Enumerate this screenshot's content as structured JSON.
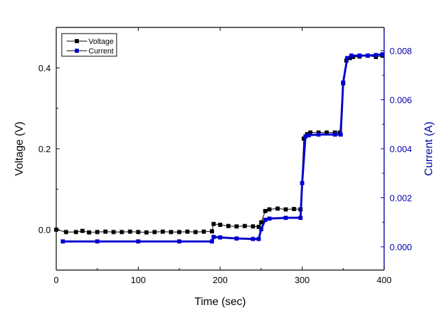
{
  "chart_data": {
    "type": "line",
    "title": "",
    "xlabel": "Time (sec)",
    "ylabel_left": "Voltage (V)",
    "ylabel_right": "Current (A)",
    "xlim": [
      0,
      400
    ],
    "ylim_left": [
      -0.1,
      0.5
    ],
    "ylim_right": [
      -0.00095,
      0.00895
    ],
    "x_ticks": [
      0,
      100,
      200,
      300,
      400
    ],
    "y_left_ticks": [
      0.0,
      0.2,
      0.4
    ],
    "y_left_tick_labels": [
      "0.0",
      "0.2",
      "0.4"
    ],
    "y_right_ticks": [
      0.0,
      0.002,
      0.004,
      0.006,
      0.008
    ],
    "y_right_tick_labels": [
      "0.000",
      "0.002",
      "0.004",
      "0.006",
      "0.008"
    ],
    "grid": false,
    "legend_position": "top-left",
    "colors": {
      "voltage": "#000000",
      "current": "#0000cc",
      "right_axis": "#0000aa"
    },
    "series": [
      {
        "name": "Voltage",
        "axis": "left",
        "x": [
          0,
          12,
          24,
          32,
          40,
          50,
          60,
          70,
          80,
          90,
          100,
          110,
          120,
          130,
          140,
          150,
          160,
          170,
          180,
          190,
          192,
          200,
          210,
          220,
          230,
          240,
          247,
          250,
          255,
          260,
          270,
          280,
          290,
          298,
          302,
          306,
          310,
          320,
          330,
          340,
          346,
          350,
          354,
          358,
          362,
          370,
          380,
          390,
          398
        ],
        "y": [
          0.0,
          -0.006,
          -0.006,
          -0.003,
          -0.007,
          -0.006,
          -0.005,
          -0.006,
          -0.006,
          -0.005,
          -0.006,
          -0.007,
          -0.006,
          -0.005,
          -0.006,
          -0.006,
          -0.005,
          -0.006,
          -0.005,
          -0.004,
          0.014,
          0.012,
          0.009,
          0.008,
          0.009,
          0.008,
          0.007,
          0.018,
          0.046,
          0.05,
          0.052,
          0.05,
          0.051,
          0.05,
          0.225,
          0.236,
          0.24,
          0.24,
          0.24,
          0.24,
          0.24,
          0.362,
          0.418,
          0.424,
          0.427,
          0.428,
          0.43,
          0.427,
          0.43
        ]
      },
      {
        "name": "Current",
        "axis": "right",
        "x": [
          8,
          50,
          100,
          150,
          190,
          192,
          200,
          220,
          240,
          247,
          250,
          255,
          260,
          280,
          298,
          300,
          304,
          308,
          320,
          340,
          347,
          350,
          355,
          360,
          370,
          380,
          390,
          398
        ],
        "y": [
          0.00022,
          0.00022,
          0.00022,
          0.00022,
          0.00022,
          0.0004,
          0.00038,
          0.00034,
          0.00032,
          0.00032,
          0.00072,
          0.0011,
          0.00115,
          0.00118,
          0.00118,
          0.0026,
          0.0045,
          0.00455,
          0.00458,
          0.00458,
          0.00458,
          0.0067,
          0.0077,
          0.0078,
          0.0078,
          0.0078,
          0.00782,
          0.00785
        ]
      }
    ]
  }
}
